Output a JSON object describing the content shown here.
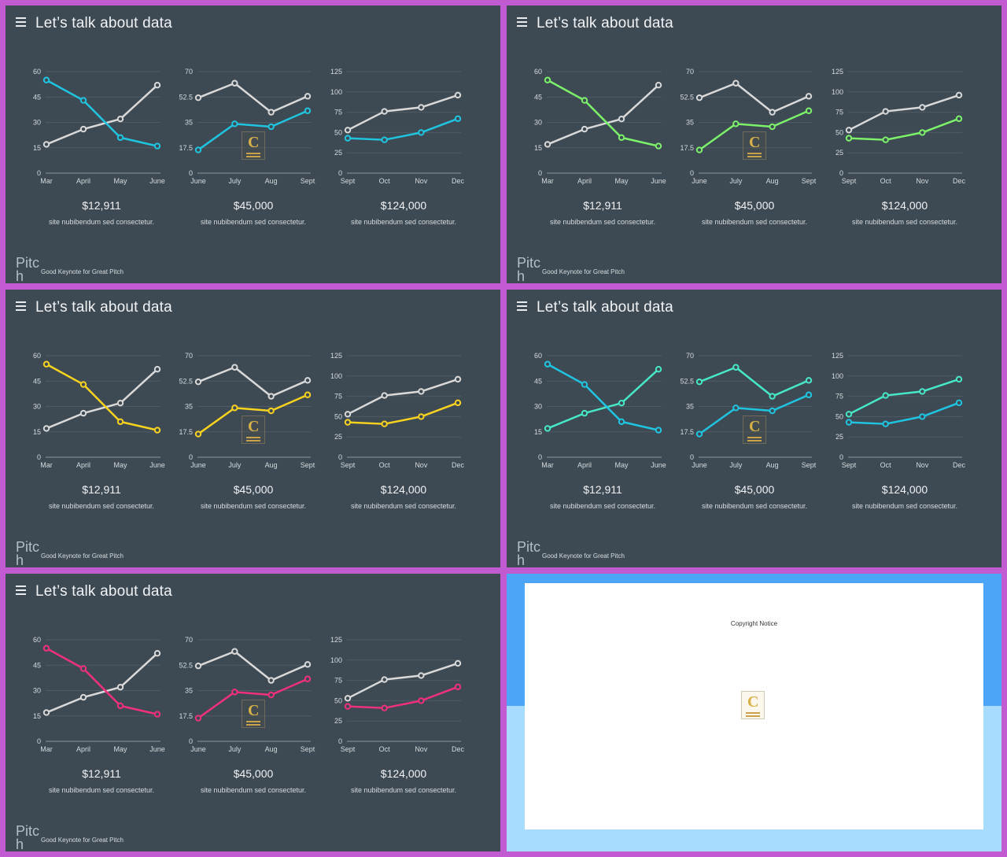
{
  "colors": {
    "background": "#3e4a53",
    "border": "#c25bd2",
    "gray_series": "#d9d9d9",
    "grid": "#4f5b64",
    "axis": "#8c979f",
    "copyright_top": "#4da5f7",
    "copyright_bottom": "#a8dcff"
  },
  "icons": {
    "menu": "hamburger-icon",
    "logo": "contents-logo"
  },
  "logo": {
    "letter": "C",
    "text": "CONTENTS"
  },
  "slides": [
    {
      "title": "Let’s talk about data",
      "accent": "#1fc5e0",
      "alt_color": "#d9d9d9",
      "brand": "Pitch",
      "tagline": "Good Keynote for Great Pitch",
      "stats": [
        {
          "value": "$12,911",
          "caption": "site nubibendum sed consectetur."
        },
        {
          "value": "$45,000",
          "caption": "site nubibendum sed consectetur."
        },
        {
          "value": "$124,000",
          "caption": "site nubibendum sed consectetur."
        }
      ]
    },
    {
      "title": "Let’s talk about data",
      "accent": "#7cf26a",
      "alt_color": "#d9d9d9",
      "brand": "Pitch",
      "tagline": "Good Keynote for Great Pitch",
      "stats": [
        {
          "value": "$12,911",
          "caption": "site nubibendum sed consectetur."
        },
        {
          "value": "$45,000",
          "caption": "site nubibendum sed consectetur."
        },
        {
          "value": "$124,000",
          "caption": "site nubibendum sed consectetur."
        }
      ]
    },
    {
      "title": "Let’s talk about data",
      "accent": "#f7d21f",
      "alt_color": "#d9d9d9",
      "brand": "Pitch",
      "tagline": "Good Keynote for Great Pitch",
      "stats": [
        {
          "value": "$12,911",
          "caption": "site nubibendum sed consectetur."
        },
        {
          "value": "$45,000",
          "caption": "site nubibendum sed consectetur."
        },
        {
          "value": "$124,000",
          "caption": "site nubibendum sed consectetur."
        }
      ]
    },
    {
      "title": "Let’s talk about data",
      "accent": "#1fc5e0",
      "alt_color": "#46e8c8",
      "brand": "Pitch",
      "tagline": "Good Keynote for Great Pitch",
      "stats": [
        {
          "value": "$12,911",
          "caption": "site nubibendum sed consectetur."
        },
        {
          "value": "$45,000",
          "caption": "site nubibendum sed consectetur."
        },
        {
          "value": "$124,000",
          "caption": "site nubibendum sed consectetur."
        }
      ]
    },
    {
      "title": "Let’s talk about data",
      "accent": "#f0307a",
      "alt_color": "#d9d9d9",
      "brand": "Pitch",
      "tagline": "Good Keynote for Great Pitch",
      "stats": [
        {
          "value": "$12,911",
          "caption": "site nubibendum sed consectetur."
        },
        {
          "value": "$45,000",
          "caption": "site nubibendum sed consectetur."
        },
        {
          "value": "$124,000",
          "caption": "site nubibendum sed consectetur."
        }
      ]
    }
  ],
  "copyright": {
    "notice": "Copyright Notice"
  },
  "chart_data": [
    {
      "type": "line",
      "categories": [
        "Mar",
        "April",
        "May",
        "June"
      ],
      "ylim": [
        0,
        60
      ],
      "yticks": [
        "0",
        "15",
        "30",
        "45",
        "60"
      ],
      "series": [
        {
          "name": "gray",
          "role": "alt",
          "values": [
            17,
            26,
            32,
            52
          ]
        },
        {
          "name": "accent",
          "role": "accent",
          "values": [
            55,
            43,
            21,
            16
          ]
        }
      ]
    },
    {
      "type": "line",
      "categories": [
        "June",
        "July",
        "Aug",
        "Sept"
      ],
      "ylim": [
        0,
        70
      ],
      "yticks": [
        "0",
        "17.5",
        "35",
        "52.5",
        "70"
      ],
      "series": [
        {
          "name": "gray",
          "role": "alt",
          "values": [
            52,
            62,
            42,
            53
          ]
        },
        {
          "name": "accent",
          "role": "accent",
          "values": [
            16,
            34,
            32,
            43
          ]
        }
      ]
    },
    {
      "type": "line",
      "categories": [
        "Sept",
        "Oct",
        "Nov",
        "Dec"
      ],
      "ylim": [
        0,
        125
      ],
      "yticks": [
        "0",
        "25",
        "50",
        "75",
        "100",
        "125"
      ],
      "series": [
        {
          "name": "gray",
          "role": "alt",
          "values": [
            53,
            76,
            81,
            96
          ]
        },
        {
          "name": "accent",
          "role": "accent",
          "values": [
            43,
            41,
            50,
            67
          ]
        }
      ]
    }
  ]
}
